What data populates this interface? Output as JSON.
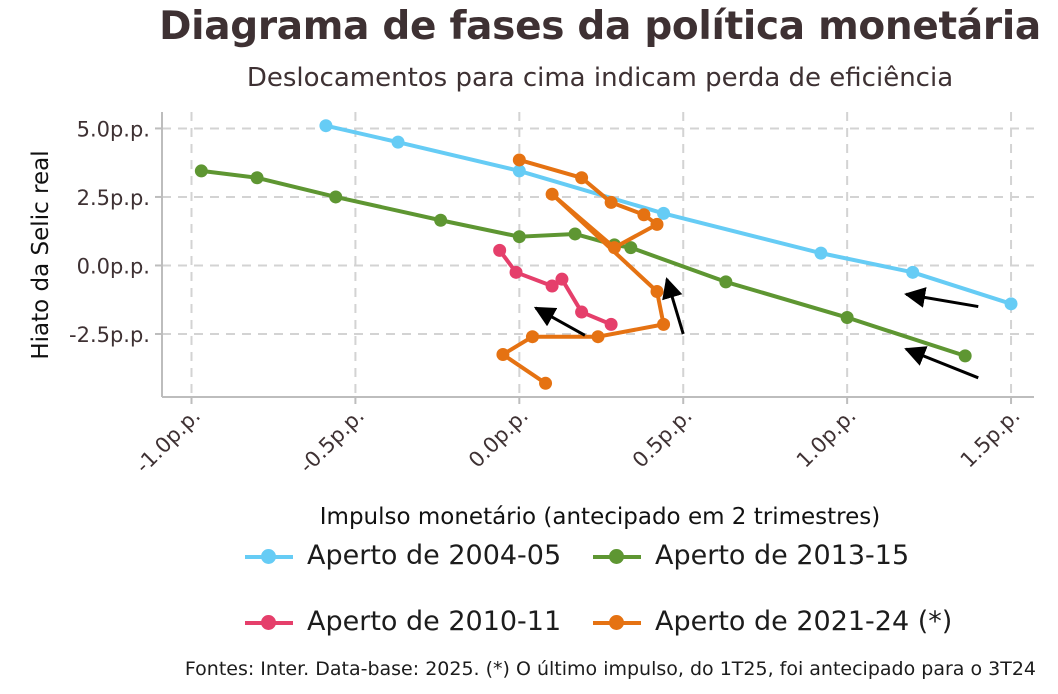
{
  "title": "Diagrama de fases da política monetária",
  "subtitle": "Deslocamentos para cima indicam perda de eficiência",
  "source": "Fontes: Inter. Data-base: 2025. (*) O último impulso, do 1T25, foi antecipado para o 3T24",
  "colors": {
    "text": "#3e3133",
    "grid": "#d3d3d3",
    "axis": "#bdbdbd",
    "arrow": "#000000"
  },
  "chart_data": {
    "type": "line",
    "title": "Diagrama de fases da política monetária",
    "subtitle": "Deslocamentos para cima indicam perda de eficiência",
    "xlabel": "Impulso monetário (antecipado em 2 trimestres)",
    "ylabel": "Hiato da Selic real",
    "xlim": [
      -1.09,
      1.57
    ],
    "ylim": [
      -4.8,
      5.6
    ],
    "x_ticks": [
      -1.0,
      -0.5,
      0.0,
      0.5,
      1.0,
      1.5
    ],
    "x_tick_labels": [
      "-1.0p.p.",
      "-0.5p.p.",
      "0.0p.p.",
      "0.5p.p.",
      "1.0p.p.",
      "1.5p.p."
    ],
    "y_ticks": [
      5.0,
      2.5,
      0.0,
      -2.5
    ],
    "y_tick_labels": [
      "5.0p.p.",
      "2.5p.p.",
      "0.0p.p.",
      "-2.5p.p."
    ],
    "grid": true,
    "legend_position": "bottom",
    "series": [
      {
        "name": "Aperto de 2004-05",
        "color": "#66ccf5",
        "x": [
          -0.59,
          -0.37,
          0.0,
          0.44,
          0.92,
          1.2,
          1.5
        ],
        "y": [
          5.1,
          4.5,
          3.45,
          1.9,
          0.45,
          -0.25,
          -1.4
        ]
      },
      {
        "name": "Aperto de 2013-15",
        "color": "#5e9632",
        "x": [
          -0.97,
          -0.8,
          -0.56,
          -0.24,
          0.0,
          0.17,
          0.29,
          0.34,
          0.63,
          1.0,
          1.36
        ],
        "y": [
          3.45,
          3.2,
          2.5,
          1.65,
          1.05,
          1.15,
          0.75,
          0.65,
          -0.6,
          -1.9,
          -3.3
        ]
      },
      {
        "name": "Aperto de 2010-11",
        "color": "#e53f6b",
        "x": [
          -0.06,
          -0.01,
          0.1,
          0.13,
          0.19,
          0.28
        ],
        "y": [
          0.55,
          -0.25,
          -0.75,
          -0.5,
          -1.7,
          -2.15
        ]
      },
      {
        "name": "Aperto de 2021-24 (*)",
        "color": "#e57212",
        "x": [
          0.0,
          0.19,
          0.28,
          0.38,
          0.42,
          0.29,
          0.1,
          0.42,
          0.44,
          0.24,
          0.04,
          -0.05,
          0.08
        ],
        "y": [
          3.85,
          3.2,
          2.3,
          1.85,
          1.5,
          0.65,
          2.6,
          -0.95,
          -2.15,
          -2.6,
          -2.6,
          -3.25,
          -4.3
        ]
      }
    ],
    "arrows": [
      {
        "from": [
          1.4,
          -1.5
        ],
        "to": [
          1.18,
          -1.05
        ]
      },
      {
        "from": [
          1.4,
          -4.1
        ],
        "to": [
          1.18,
          -3.05
        ]
      },
      {
        "from": [
          0.2,
          -2.55
        ],
        "to": [
          0.05,
          -1.55
        ]
      },
      {
        "from": [
          0.5,
          -2.5
        ],
        "to": [
          0.45,
          -0.5
        ]
      }
    ]
  },
  "legend": {
    "items": [
      {
        "label": "Aperto de 2004-05",
        "color": "#66ccf5"
      },
      {
        "label": "Aperto de 2013-15",
        "color": "#5e9632"
      },
      {
        "label": "Aperto de 2010-11",
        "color": "#e53f6b"
      },
      {
        "label": "Aperto de 2021-24 (*)",
        "color": "#e57212"
      }
    ]
  }
}
